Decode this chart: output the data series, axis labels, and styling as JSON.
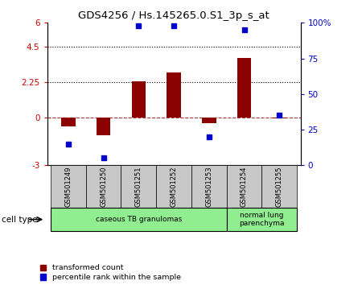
{
  "title": "GDS4256 / Hs.145265.0.S1_3p_s_at",
  "samples": [
    "GSM501249",
    "GSM501250",
    "GSM501251",
    "GSM501252",
    "GSM501253",
    "GSM501254",
    "GSM501255"
  ],
  "red_bars": [
    -0.55,
    -1.1,
    2.28,
    2.85,
    -0.35,
    3.8,
    -0.02
  ],
  "blue_pct": [
    15,
    5,
    98,
    98,
    20,
    95,
    35
  ],
  "ylim_left": [
    -3,
    6
  ],
  "ylim_right": [
    0,
    100
  ],
  "left_ticks": [
    -3,
    0,
    2.25,
    4.5,
    6
  ],
  "right_ticks": [
    0,
    25,
    50,
    75,
    100
  ],
  "dotted_lines": [
    4.5,
    2.25
  ],
  "dashed_line": 0,
  "bar_color": "#8B0000",
  "blue_color": "#0000CC",
  "cell_type_groups": [
    {
      "label": "caseous TB granulomas",
      "indices": [
        0,
        1,
        2,
        3,
        4
      ],
      "color": "#90EE90"
    },
    {
      "label": "normal lung\nparenchyma",
      "indices": [
        5,
        6
      ],
      "color": "#90EE90"
    }
  ],
  "cell_type_label": "cell type",
  "legend_items": [
    "transformed count",
    "percentile rank within the sample"
  ],
  "tick_color_left": "#CC0000",
  "tick_color_right": "#0000CC",
  "bar_width": 0.4
}
